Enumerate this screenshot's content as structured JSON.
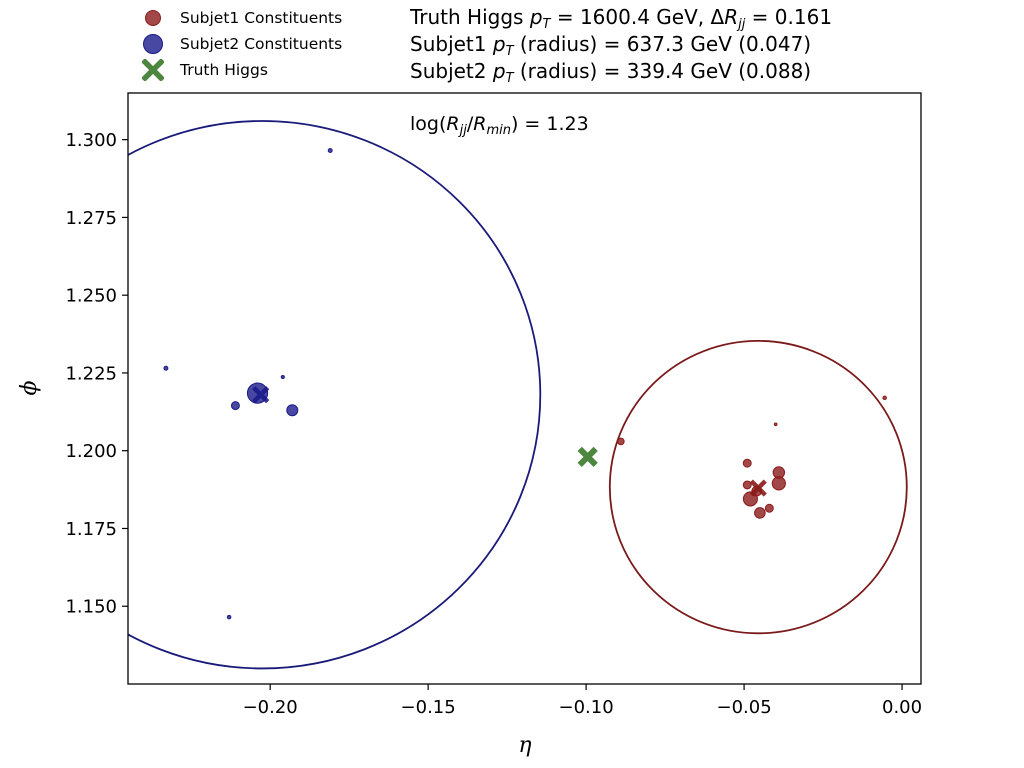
{
  "legend": {
    "entries": [
      {
        "label": "Subjet1 Constituents",
        "marker": "circle",
        "color": "#8b1a1a"
      },
      {
        "label": "Subjet2 Constituents",
        "marker": "circle",
        "color": "#1a1a8b"
      },
      {
        "label": "Truth Higgs",
        "marker": "x",
        "color": "#3a7a2a"
      }
    ]
  },
  "info": {
    "line1_prefix": "Truth Higgs ",
    "line1_pt_value": " = 1600.4 GeV, Δ",
    "line1_dr_value": " = 0.161",
    "line2_prefix": "Subjet1 ",
    "line2_value": " (radius) = 637.3 GeV (0.047)",
    "line3_prefix": "Subjet2 ",
    "line3_value": " (radius) = 339.4 GeV (0.088)",
    "pt_symbol": "p",
    "pt_sub": "T",
    "dr_symbol": "R",
    "dr_sub": "jj"
  },
  "annotation": {
    "prefix": "log(",
    "num": "R",
    "num_sub": "jj",
    "slash": "/",
    "den": "R",
    "den_sub": "min",
    "suffix": ") = 1.23"
  },
  "chart_data": {
    "type": "scatter",
    "xlabel": "η",
    "ylabel": "ϕ",
    "xlim": [
      -0.245,
      0.006
    ],
    "ylim": [
      1.125,
      1.315
    ],
    "xticks": [
      -0.2,
      -0.15,
      -0.1,
      -0.05,
      0.0
    ],
    "xtick_labels": [
      "−0.20",
      "−0.15",
      "−0.10",
      "−0.05",
      "0.00"
    ],
    "yticks": [
      1.15,
      1.175,
      1.2,
      1.225,
      1.25,
      1.275,
      1.3
    ],
    "ytick_labels": [
      "1.150",
      "1.175",
      "1.200",
      "1.225",
      "1.250",
      "1.275",
      "1.300"
    ],
    "grid": false,
    "legend_position": "top-left",
    "series": [
      {
        "name": "Subjet1 Constituents",
        "color": "#8b1a1a",
        "points": [
          {
            "x": -0.0055,
            "y": 1.217,
            "size": 0.8
          },
          {
            "x": -0.04,
            "y": 1.2085,
            "size": 0.6
          },
          {
            "x": -0.089,
            "y": 1.203,
            "size": 1.5
          },
          {
            "x": -0.049,
            "y": 1.196,
            "size": 1.8
          },
          {
            "x": -0.039,
            "y": 1.193,
            "size": 2.6
          },
          {
            "x": -0.049,
            "y": 1.189,
            "size": 1.8
          },
          {
            "x": -0.039,
            "y": 1.1895,
            "size": 3.0
          },
          {
            "x": -0.046,
            "y": 1.187,
            "size": 2.2
          },
          {
            "x": -0.048,
            "y": 1.1845,
            "size": 3.2
          },
          {
            "x": -0.042,
            "y": 1.1815,
            "size": 1.8
          },
          {
            "x": -0.045,
            "y": 1.18,
            "size": 2.4
          }
        ]
      },
      {
        "name": "Subjet2 Constituents",
        "color": "#1a1a8b",
        "points": [
          {
            "x": -0.181,
            "y": 1.2965,
            "size": 0.9
          },
          {
            "x": -0.233,
            "y": 1.2265,
            "size": 0.9
          },
          {
            "x": -0.196,
            "y": 1.2237,
            "size": 0.7
          },
          {
            "x": -0.204,
            "y": 1.2185,
            "size": 4.6
          },
          {
            "x": -0.211,
            "y": 1.2145,
            "size": 1.8
          },
          {
            "x": -0.193,
            "y": 1.213,
            "size": 2.5
          },
          {
            "x": -0.213,
            "y": 1.1465,
            "size": 0.8
          }
        ]
      },
      {
        "name": "Truth Higgs",
        "color": "#3a7a2a",
        "marker": "x",
        "points": [
          {
            "x": -0.0995,
            "y": 1.198
          }
        ]
      }
    ],
    "subjet_axes": [
      {
        "series": "Subjet1 Constituents",
        "x": -0.0455,
        "y": 1.188,
        "color": "#8b1a1a"
      },
      {
        "series": "Subjet2 Constituents",
        "x": -0.203,
        "y": 1.218,
        "color": "#1a1a8b"
      }
    ],
    "circles": [
      {
        "cx": -0.0455,
        "cy": 1.1883,
        "radius": 0.047,
        "color": "#7a1a1a"
      },
      {
        "cx": -0.2025,
        "cy": 1.218,
        "radius": 0.088,
        "color": "#1a1a7a"
      }
    ]
  }
}
